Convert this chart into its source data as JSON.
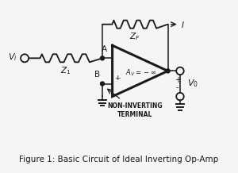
{
  "title": "Figure 1: Basic Circuit of Ideal Inverting Op-Amp",
  "title_fontsize": 7.5,
  "bg_color": "#f5f5f5",
  "line_color": "#1a1a1a",
  "zf_label": "Z_F",
  "z1_label": "Z_1",
  "vi_label": "V_i",
  "vo_label": "V_0",
  "node_a_label": "A",
  "node_b_label": "B",
  "current_label": "I",
  "non_inv_label1": "NON-INVERTING",
  "non_inv_label2": "TERMINAL",
  "plus_label": "+",
  "minus_label": "-",
  "xlim": [
    0,
    10
  ],
  "ylim": [
    0,
    7.5
  ]
}
